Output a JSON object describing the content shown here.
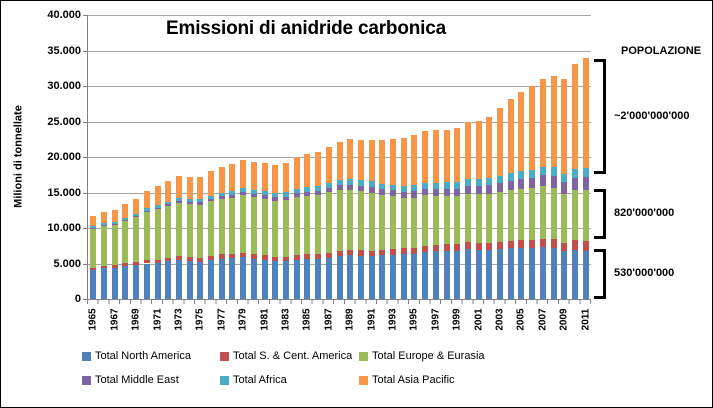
{
  "chart_data": {
    "type": "bar",
    "stacked": true,
    "title": "Emissioni di anidride carbonica",
    "ylabel": "Milioni di tonnellate",
    "xlabel": "",
    "ylim": [
      0,
      40000
    ],
    "grid": true,
    "legend_position": "bottom",
    "y_tick_labels": [
      "0",
      "5.000",
      "10.000",
      "15.000",
      "20.000",
      "25.000",
      "30.000",
      "35.000",
      "40.000"
    ],
    "x": [
      1965,
      1966,
      1967,
      1968,
      1969,
      1970,
      1971,
      1972,
      1973,
      1974,
      1975,
      1976,
      1977,
      1978,
      1979,
      1980,
      1981,
      1982,
      1983,
      1984,
      1985,
      1986,
      1987,
      1988,
      1989,
      1990,
      1991,
      1992,
      1993,
      1994,
      1995,
      1996,
      1997,
      1998,
      1999,
      2000,
      2001,
      2002,
      2003,
      2004,
      2005,
      2006,
      2007,
      2008,
      2009,
      2010,
      2011
    ],
    "x_tick_step": 2,
    "series": [
      {
        "name": "Total North America",
        "color": "#4F81BD",
        "values": [
          4100,
          4300,
          4400,
          4650,
          4850,
          5000,
          5100,
          5350,
          5550,
          5400,
          5250,
          5550,
          5700,
          5750,
          5850,
          5700,
          5550,
          5300,
          5300,
          5550,
          5600,
          5600,
          5800,
          6050,
          6150,
          6100,
          6050,
          6150,
          6250,
          6350,
          6400,
          6600,
          6700,
          6750,
          6800,
          7050,
          6900,
          6950,
          7000,
          7150,
          7250,
          7150,
          7350,
          7150,
          6700,
          6900,
          6800
        ]
      },
      {
        "name": "Total S. & Cent. America",
        "color": "#C0504D",
        "values": [
          330,
          340,
          350,
          365,
          380,
          430,
          445,
          460,
          480,
          495,
          530,
          550,
          570,
          590,
          620,
          640,
          650,
          655,
          650,
          660,
          680,
          700,
          720,
          740,
          745,
          750,
          770,
          780,
          800,
          820,
          850,
          880,
          910,
          930,
          940,
          950,
          960,
          960,
          970,
          1000,
          1050,
          1100,
          1150,
          1250,
          1230,
          1350,
          1400
        ]
      },
      {
        "name": "Total Europe & Eurasia",
        "color": "#9BBB59",
        "values": [
          5450,
          5600,
          5700,
          6000,
          6300,
          6800,
          7100,
          7300,
          7500,
          7500,
          7500,
          7650,
          7800,
          7950,
          8150,
          8050,
          7950,
          7900,
          7950,
          8150,
          8250,
          8300,
          8500,
          8550,
          8500,
          8350,
          8150,
          7700,
          7400,
          7050,
          7000,
          7100,
          6900,
          6850,
          6750,
          6850,
          6900,
          6900,
          7050,
          7150,
          7200,
          7350,
          7350,
          7300,
          6800,
          7100,
          7150
        ]
      },
      {
        "name": "Total Middle East",
        "color": "#8064A2",
        "values": [
          130,
          140,
          155,
          170,
          185,
          220,
          240,
          260,
          285,
          310,
          330,
          360,
          390,
          420,
          430,
          450,
          470,
          490,
          510,
          540,
          600,
          620,
          650,
          680,
          720,
          750,
          780,
          810,
          850,
          870,
          900,
          940,
          980,
          1020,
          1060,
          1100,
          1150,
          1200,
          1250,
          1350,
          1450,
          1500,
          1550,
          1650,
          1700,
          1750,
          1800
        ]
      },
      {
        "name": "Total Africa",
        "color": "#4BACC6",
        "values": [
          250,
          260,
          270,
          285,
          300,
          320,
          340,
          360,
          380,
          400,
          420,
          450,
          480,
          510,
          530,
          550,
          580,
          610,
          640,
          660,
          680,
          700,
          720,
          740,
          760,
          780,
          800,
          810,
          820,
          830,
          850,
          870,
          890,
          910,
          930,
          950,
          960,
          980,
          1010,
          1050,
          1100,
          1120,
          1150,
          1200,
          1200,
          1250,
          1250
        ]
      },
      {
        "name": "Total Asia Pacific",
        "color": "#F79646",
        "values": [
          1450,
          1600,
          1650,
          1850,
          2100,
          2500,
          2650,
          2850,
          3100,
          3050,
          3150,
          3400,
          3600,
          3800,
          3950,
          3950,
          3900,
          3950,
          4100,
          4400,
          4650,
          4800,
          5050,
          5400,
          5600,
          5700,
          5900,
          6100,
          6400,
          6700,
          7050,
          7250,
          7450,
          7400,
          7600,
          8000,
          8200,
          8700,
          9600,
          10500,
          11100,
          11800,
          12500,
          12900,
          13300,
          14700,
          15500
        ]
      }
    ]
  },
  "population": {
    "header": "POPOLAZIONE",
    "brackets": [
      {
        "label": "~2'000'000'000",
        "value_range": [
          17600,
          33800
        ]
      },
      {
        "label": "820'000'000",
        "value_range": [
          8450,
          15500
        ]
      },
      {
        "label": "530'000'000",
        "value_range": [
          0,
          7050
        ]
      }
    ]
  }
}
